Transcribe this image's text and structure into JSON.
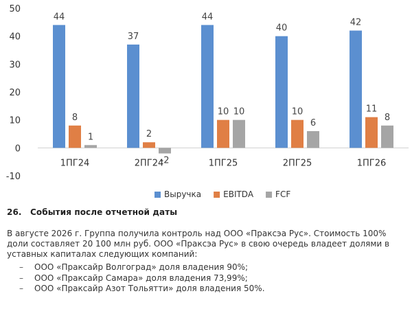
{
  "chart_data": {
    "type": "bar",
    "title": "",
    "xlabel": "",
    "ylabel": "",
    "ylim": [
      -10,
      50
    ],
    "yticks": [
      -10,
      0,
      10,
      20,
      30,
      40,
      50
    ],
    "grid": false,
    "legend_position": "bottom",
    "categories": [
      "1ПГ24",
      "2ПГ24",
      "1ПГ25",
      "2ПГ25",
      "1ПГ26"
    ],
    "series": [
      {
        "name": "Выручка",
        "color": "#5b8fd0",
        "values": [
          44,
          37,
          44,
          40,
          42
        ]
      },
      {
        "name": "EBITDA",
        "color": "#e07f45",
        "values": [
          8,
          2,
          10,
          10,
          11
        ]
      },
      {
        "name": "FCF",
        "color": "#a5a5a5",
        "values": [
          1,
          -2,
          10,
          6,
          8
        ]
      }
    ]
  },
  "section": {
    "number": "26.",
    "title": "События после отчетной даты"
  },
  "paragraph": "В августе 2026 г. Группа получила контроль над ООО «Праксэа Рус». Стоимость 100% доли составляет 20 100 млн руб. ООО «Праксэа Рус» в свою очередь владеет долями в уставных капиталах следующих компаний:",
  "list": [
    {
      "dash": "–",
      "text": "ООО «Праксайр Волгоград» доля владения 90%;"
    },
    {
      "dash": "–",
      "text": "ООО «Праксайр Самара» доля владения 73,99%;"
    },
    {
      "dash": "–",
      "text": "ООО «Праксайр Азот Тольятти» доля владения 50%."
    }
  ]
}
